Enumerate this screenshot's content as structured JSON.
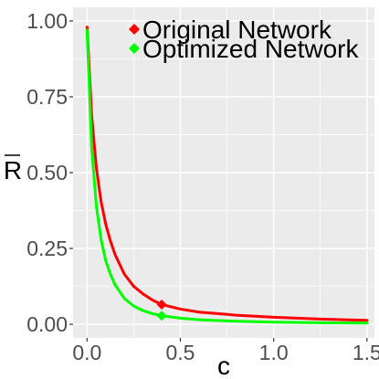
{
  "chart_data": {
    "type": "line",
    "title": "",
    "xlabel": "c",
    "ylabel": "R",
    "ylabel_overline": true,
    "xlim": [
      -0.075,
      1.54
    ],
    "ylim": [
      -0.045,
      1.045
    ],
    "x_ticks": [
      0.0,
      0.5,
      1.0,
      1.5
    ],
    "x_tick_labels": [
      "0.0",
      "0.5",
      "1.0",
      "1.5"
    ],
    "y_ticks": [
      0.0,
      0.25,
      0.5,
      0.75,
      1.0
    ],
    "y_tick_labels": [
      "0.00",
      "0.25",
      "0.50",
      "0.75",
      "1.00"
    ],
    "grid": true,
    "background": "#ebebeb",
    "grid_color": "#ffffff",
    "legend_position": "top-right",
    "series": [
      {
        "name": "Original Network",
        "color": "#ff0000",
        "x": [
          0.0,
          0.025,
          0.05,
          0.075,
          0.1,
          0.125,
          0.15,
          0.2,
          0.25,
          0.3,
          0.35,
          0.4,
          0.5,
          0.6,
          0.8,
          1.0,
          1.25,
          1.5
        ],
        "y": [
          0.98,
          0.685,
          0.515,
          0.405,
          0.33,
          0.275,
          0.23,
          0.165,
          0.125,
          0.1,
          0.08,
          0.065,
          0.05,
          0.04,
          0.03,
          0.023,
          0.017,
          0.013
        ],
        "marker": {
          "x": 0.4,
          "y": 0.065
        }
      },
      {
        "name": "Optimized Network",
        "color": "#00ff00",
        "x": [
          0.0,
          0.025,
          0.05,
          0.075,
          0.1,
          0.125,
          0.15,
          0.2,
          0.25,
          0.3,
          0.35,
          0.4,
          0.5,
          0.6,
          0.8,
          1.0,
          1.25,
          1.5
        ],
        "y": [
          0.97,
          0.58,
          0.39,
          0.28,
          0.21,
          0.165,
          0.13,
          0.085,
          0.06,
          0.045,
          0.035,
          0.028,
          0.02,
          0.015,
          0.01,
          0.007,
          0.005,
          0.004
        ],
        "marker": {
          "x": 0.4,
          "y": 0.028
        }
      }
    ]
  }
}
